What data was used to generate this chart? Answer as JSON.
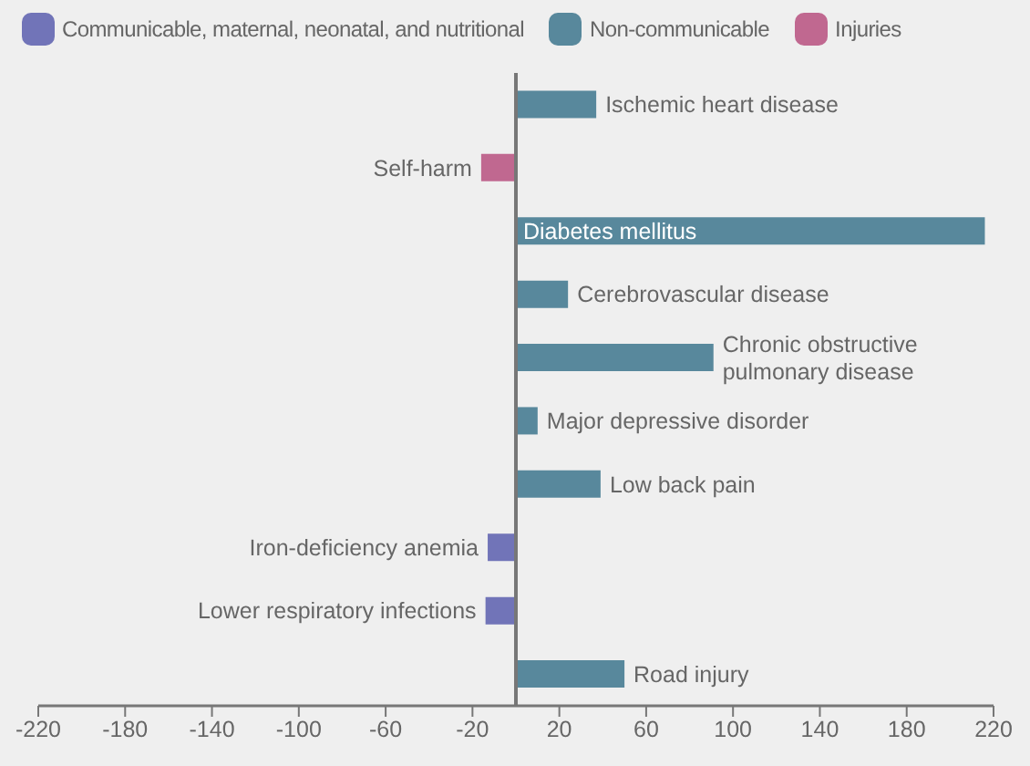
{
  "chart_data": {
    "type": "bar",
    "orientation": "horizontal",
    "legend": "top",
    "categories": [
      "Ischemic heart disease",
      "Self-harm",
      "Diabetes mellitus",
      "Cerebrovascular disease",
      "Chronic obstructive pulmonary disease",
      "Major depressive disorder",
      "Low back pain",
      "Iron-deficiency anemia",
      "Lower respiratory infections",
      "Road injury"
    ],
    "series": [
      {
        "name": "Communicable, maternal, neonatal, and nutritional",
        "color": "#7174b8",
        "values": [
          null,
          null,
          null,
          null,
          null,
          null,
          null,
          -13,
          -14,
          null
        ]
      },
      {
        "name": "Non-communicable",
        "color": "#58889c",
        "values": [
          37,
          null,
          216,
          24,
          91,
          10,
          39,
          null,
          null,
          50
        ]
      },
      {
        "name": "Injuries",
        "color": "#c06890",
        "values": [
          null,
          -16,
          null,
          null,
          null,
          null,
          null,
          null,
          null,
          null
        ]
      }
    ],
    "xlim": [
      -220,
      220
    ],
    "xticks": [
      -220,
      -180,
      -140,
      -100,
      -60,
      -20,
      20,
      60,
      100,
      140,
      180,
      220
    ]
  }
}
